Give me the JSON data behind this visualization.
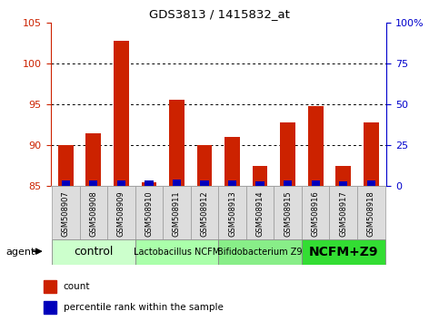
{
  "title": "GDS3813 / 1415832_at",
  "samples": [
    "GSM508907",
    "GSM508908",
    "GSM508909",
    "GSM508910",
    "GSM508911",
    "GSM508912",
    "GSM508913",
    "GSM508914",
    "GSM508915",
    "GSM508916",
    "GSM508917",
    "GSM508918"
  ],
  "red_values": [
    90.0,
    91.5,
    102.8,
    85.5,
    95.6,
    90.0,
    91.0,
    87.5,
    92.8,
    94.8,
    87.5,
    92.8
  ],
  "blue_values": [
    0.7,
    0.7,
    0.7,
    0.7,
    0.8,
    0.7,
    0.7,
    0.6,
    0.7,
    0.7,
    0.6,
    0.7
  ],
  "bar_base": 85,
  "ylim_left": [
    85,
    105
  ],
  "ylim_right": [
    0,
    100
  ],
  "yticks_left": [
    85,
    90,
    95,
    100,
    105
  ],
  "ytick_labels_left": [
    "85",
    "90",
    "95",
    "100",
    "105"
  ],
  "yticks_right": [
    0,
    25,
    50,
    75,
    100
  ],
  "ytick_labels_right": [
    "0",
    "25",
    "50",
    "75",
    "100%"
  ],
  "grid_yticks": [
    90,
    95,
    100
  ],
  "left_axis_color": "#cc2200",
  "right_axis_color": "#0000cc",
  "bar_color_red": "#cc2200",
  "bar_color_blue": "#0000bb",
  "groups": [
    {
      "label": "control",
      "start": 0,
      "end": 3,
      "color": "#ccffcc",
      "fontsize": 9,
      "bold": false
    },
    {
      "label": "Lactobacillus NCFM",
      "start": 3,
      "end": 6,
      "color": "#aaffaa",
      "fontsize": 7,
      "bold": false
    },
    {
      "label": "Bifidobacterium Z9",
      "start": 6,
      "end": 9,
      "color": "#88ee88",
      "fontsize": 7,
      "bold": false
    },
    {
      "label": "NCFM+Z9",
      "start": 9,
      "end": 12,
      "color": "#33dd33",
      "fontsize": 10,
      "bold": true
    }
  ],
  "legend_count_color": "#cc2200",
  "legend_pct_color": "#0000bb",
  "agent_label": "agent"
}
